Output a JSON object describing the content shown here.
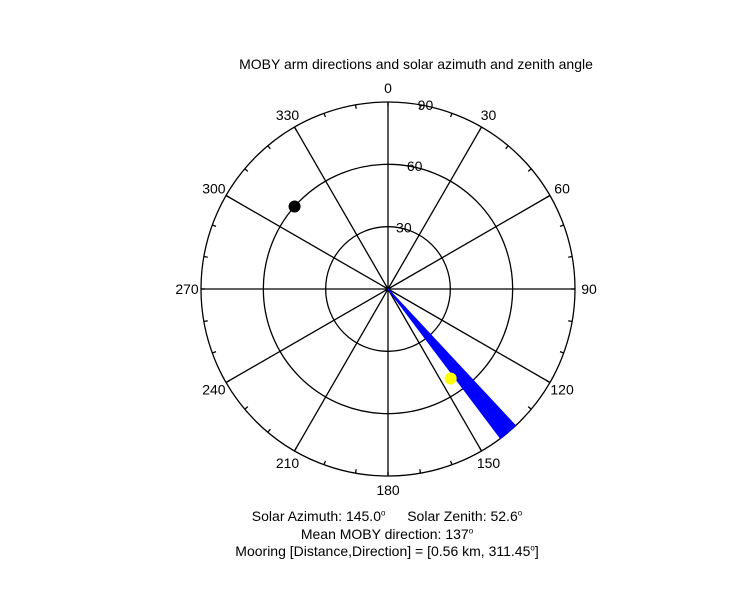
{
  "chart_data": {
    "type": "polar",
    "title": "MOBY arm directions and solar azimuth and zenith angle",
    "angle_ticks": [
      "0",
      "30",
      "60",
      "90",
      "120",
      "150",
      "180",
      "210",
      "240",
      "270",
      "300",
      "330"
    ],
    "radial_ticks": [
      "30",
      "60",
      "90"
    ],
    "radial_max": 90,
    "arm_directions_deg": {
      "from": 137,
      "to": 143
    },
    "arm_length": 90,
    "arm_color": "#0000ff",
    "sun": {
      "azimuth": 145.0,
      "zenith": 52.6,
      "color": "#ffff00"
    },
    "mooring": {
      "direction": 311.45,
      "radius": 60,
      "color": "#000000"
    },
    "grid": true
  },
  "captions": {
    "solar_azimuth": "Solar Azimuth: 145.0",
    "solar_zenith": "Solar Zenith: 52.6",
    "degree_symbol": "o",
    "mean_direction": "Mean MOBY direction: 137",
    "mooring": "Mooring [Distance,Direction] = [0.56 km, 311.45",
    "mooring_degree": "o",
    "mooring_close": "]"
  }
}
